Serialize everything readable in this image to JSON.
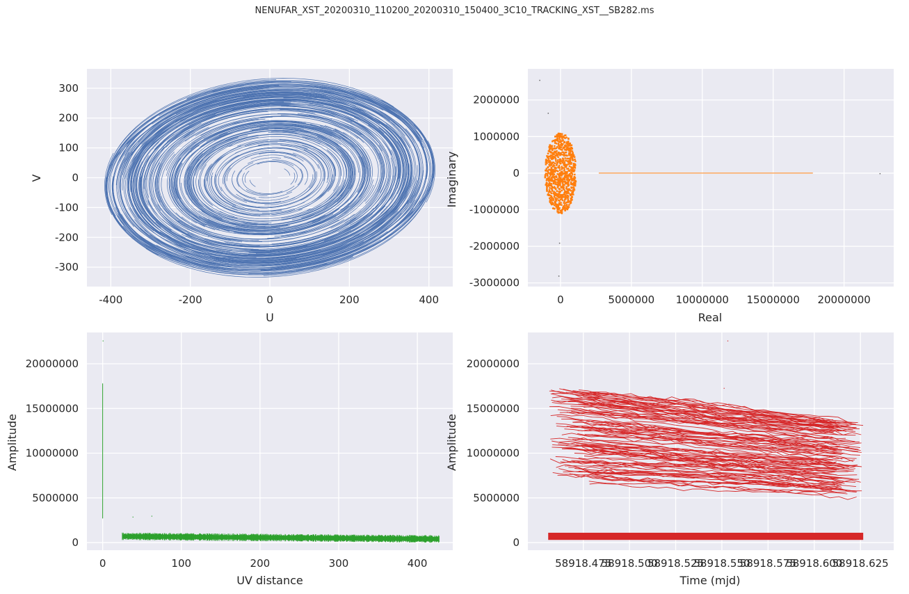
{
  "figure": {
    "title": "NENUFAR_XST_20200310_110200_20200310_150400_3C10_TRACKING_XST__SB282.ms"
  },
  "colors": {
    "background": "#eaeaf2",
    "grid": "#ffffff",
    "text": "#262626",
    "uv": "#4c72b0",
    "real_imag": "#ff7f0e",
    "amp_uvdist": "#2ca02c",
    "amp_time": "#d62728"
  },
  "chart_data": [
    {
      "type": "scatter",
      "panel": "top-left",
      "xlabel": "U",
      "ylabel": "V",
      "xlim": [
        -460,
        460
      ],
      "ylim": [
        -365,
        365
      ],
      "xticks": [
        -400,
        -200,
        0,
        200,
        400
      ],
      "yticks": [
        -300,
        -200,
        -100,
        0,
        100,
        200,
        300
      ],
      "grid": true,
      "description_points": {
        "outer_ellipse_radii": [
          420,
          330
        ],
        "inner_hole_radius": 20
      }
    },
    {
      "type": "scatter",
      "panel": "top-right",
      "xlabel": "Real",
      "ylabel": "Imaginary",
      "xlim": [
        -2300000,
        23500000
      ],
      "ylim": [
        -3100000,
        2850000
      ],
      "xticks": [
        0,
        5000000,
        10000000,
        15000000,
        20000000
      ],
      "yticks": [
        -3000000,
        -2000000,
        -1000000,
        0,
        1000000,
        2000000
      ],
      "grid": true,
      "cluster": {
        "center": [
          0,
          0
        ],
        "half_width": 1100000,
        "half_height": 1100000
      },
      "line": {
        "x": [
          2700000,
          17800000
        ],
        "y": 0
      },
      "outliers": [
        [
          -1500000,
          2550000
        ],
        [
          -900000,
          1650000
        ],
        [
          22500000,
          0
        ],
        [
          -100000,
          -1900000
        ],
        [
          -150000,
          -2800000
        ]
      ]
    },
    {
      "type": "scatter",
      "panel": "bottom-left",
      "xlabel": "UV distance",
      "ylabel": "Amplitude",
      "xlim": [
        -20,
        445
      ],
      "ylim": [
        -850000,
        23500000
      ],
      "xticks": [
        0,
        100,
        200,
        300,
        400
      ],
      "yticks": [
        0,
        5000000,
        10000000,
        15000000,
        20000000
      ],
      "grid": true,
      "autocorr_line": {
        "x": 0,
        "y": [
          2700000,
          17800000
        ]
      },
      "band": {
        "x": [
          25,
          428
        ],
        "y_center": [
          700000,
          400000
        ],
        "half_height": 350000
      },
      "outliers": [
        [
          0,
          22600000
        ],
        [
          38,
          2900000
        ],
        [
          62,
          3000000
        ]
      ]
    },
    {
      "type": "scatter",
      "panel": "bottom-right",
      "xlabel": "Time (mjd)",
      "ylabel": "Amplitude",
      "xlim": [
        58918.445,
        58918.643
      ],
      "ylim": [
        -850000,
        23500000
      ],
      "xticks": [
        "58918.475",
        "58918.500",
        "58918.525",
        "58918.550",
        "58918.575",
        "58918.600",
        "58918.625"
      ],
      "yticks": [
        0,
        5000000,
        10000000,
        15000000,
        20000000
      ],
      "grid": true,
      "time_range": [
        58918.456,
        58918.6265
      ],
      "upper_band": {
        "top": [
          17500000,
          13500000
        ],
        "bottom": [
          7000000,
          5000000
        ]
      },
      "lower_band": {
        "y": [
          300000,
          1100000
        ]
      },
      "outliers": [
        [
          58918.553,
          22600000
        ],
        [
          58918.551,
          17300000
        ]
      ]
    }
  ]
}
